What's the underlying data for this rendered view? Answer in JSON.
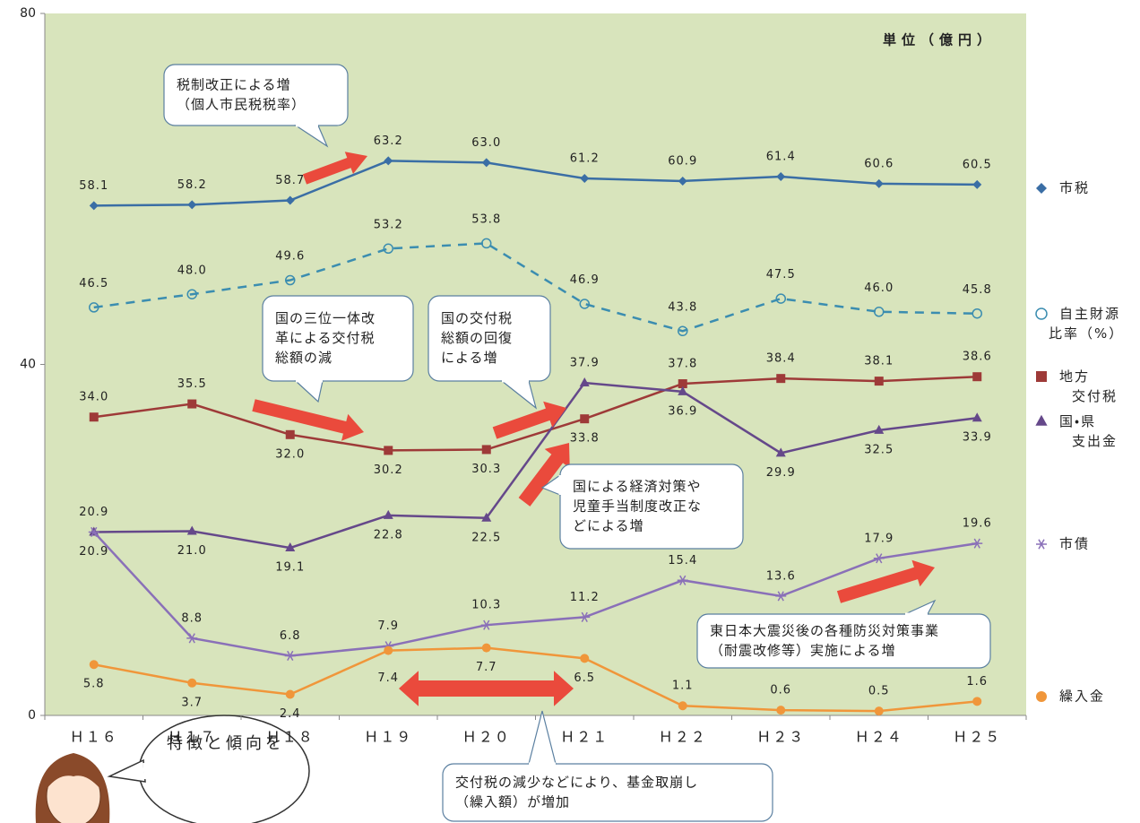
{
  "chart_data": {
    "type": "line",
    "unit_label": "単位（億円）",
    "categories": [
      "Ｈ１６",
      "Ｈ１７",
      "Ｈ１８",
      "Ｈ１９",
      "Ｈ２０",
      "Ｈ２１",
      "Ｈ２２",
      "Ｈ２３",
      "Ｈ２４",
      "Ｈ２５"
    ],
    "ylim": [
      0,
      80
    ],
    "yticks": [
      0,
      40,
      80
    ],
    "series": [
      {
        "name": "市税",
        "color": "#3a6ea5",
        "marker": "diamond",
        "dash": false,
        "values": [
          58.1,
          58.2,
          58.7,
          63.2,
          63.0,
          61.2,
          60.9,
          61.4,
          60.6,
          60.5
        ],
        "value_labels": [
          "58.1",
          "58.2",
          "58.7",
          "63.2",
          "63.0",
          "61.2",
          "60.9",
          "61.4",
          "60.6",
          "60.5"
        ]
      },
      {
        "name": "自主財源比率（%）",
        "color": "#3b8db0",
        "marker": "open-circle",
        "dash": true,
        "values": [
          46.5,
          48.0,
          49.6,
          53.2,
          53.8,
          46.9,
          43.8,
          47.5,
          46.0,
          45.8
        ],
        "value_labels": [
          "46.5",
          "48.0",
          "49.6",
          "53.2",
          "53.8",
          "46.9",
          "43.8",
          "47.5",
          "46.0",
          "45.8"
        ]
      },
      {
        "name": "地方交付税",
        "color": "#9e3a38",
        "marker": "square",
        "dash": false,
        "values": [
          34.0,
          35.5,
          32.0,
          30.2,
          30.3,
          33.8,
          37.8,
          38.4,
          38.1,
          38.6
        ],
        "value_labels": [
          "34.0",
          "35.5",
          "32.0",
          "30.2",
          "30.3",
          "33.8",
          "37.8",
          "38.4",
          "38.1",
          "38.6"
        ]
      },
      {
        "name": "国・県支出金",
        "color": "#65488a",
        "marker": "triangle",
        "dash": false,
        "values": [
          20.9,
          21.0,
          19.1,
          22.8,
          22.5,
          37.9,
          36.9,
          29.9,
          32.5,
          33.9
        ],
        "value_labels": [
          "20.9",
          "21.0",
          "19.1",
          "22.8",
          "22.5",
          "37.9",
          "36.9",
          "29.9",
          "32.5",
          "33.9"
        ]
      },
      {
        "name": "市債",
        "color": "#8a70b8",
        "marker": "asterisk",
        "dash": false,
        "values": [
          20.9,
          8.8,
          6.8,
          7.9,
          10.3,
          11.2,
          15.4,
          13.6,
          17.9,
          19.6
        ],
        "value_labels": [
          "20.9",
          "8.8",
          "6.8",
          "7.9",
          "10.3",
          "11.2",
          "15.4",
          "13.6",
          "17.9",
          "19.6"
        ]
      },
      {
        "name": "繰入金",
        "color": "#f0963a",
        "marker": "circle",
        "dash": false,
        "values": [
          5.8,
          3.7,
          2.4,
          7.4,
          7.7,
          6.5,
          1.1,
          0.6,
          0.5,
          1.6
        ],
        "value_labels": [
          "5.8",
          "3.7",
          "2.4",
          "7.4",
          "7.7",
          "6.5",
          "1.1",
          "0.6",
          "0.5",
          "1.6"
        ]
      }
    ],
    "annotations": [
      {
        "lines": [
          "税制改正による増",
          "（個人市民税税率）"
        ]
      },
      {
        "lines": [
          "国の三位一体改",
          "革による交付税",
          "総額の減"
        ]
      },
      {
        "lines": [
          "国の交付税",
          "総額の回復",
          "による増"
        ]
      },
      {
        "lines": [
          "国による経済対策や",
          "児童手当制度改正な",
          "どによる増"
        ]
      },
      {
        "lines": [
          "東日本大震災後の各種防災対策事業",
          "（耐震改修等）実施による増"
        ]
      },
      {
        "lines": [
          "交付税の減少などにより、基金取崩し",
          "（繰入額）が増加"
        ]
      }
    ],
    "speech_bubble": "特徴と傾向を"
  }
}
